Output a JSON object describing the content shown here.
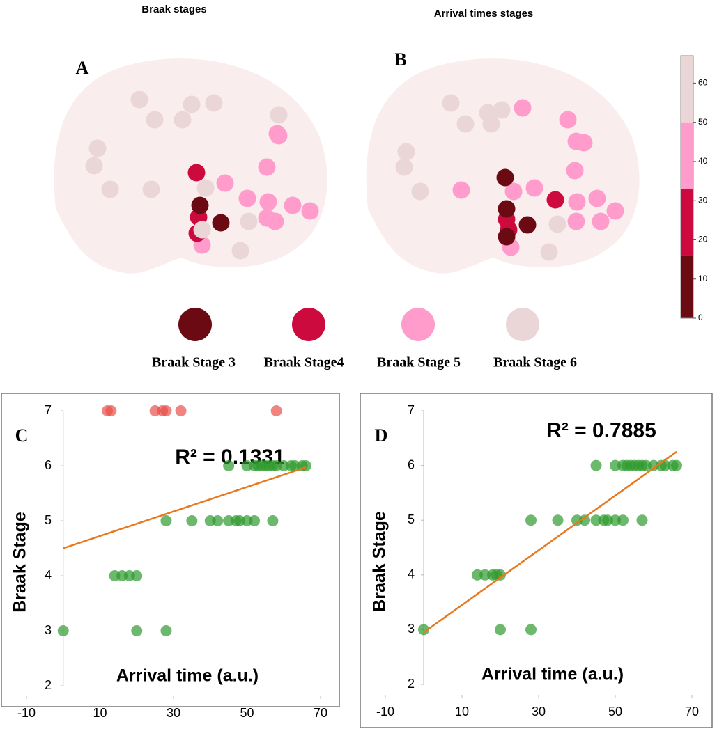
{
  "legend": [
    {
      "name": "Braak Stage 3",
      "color": "#6b0a12"
    },
    {
      "name": "Braak Stage4",
      "color": "#cc0a3e"
    },
    {
      "name": "Braak Stage 5",
      "color": "#ff9ccb"
    },
    {
      "name": "Braak Stage 6",
      "color": "#ead6d6"
    }
  ],
  "chart_data": [
    {
      "type": "brain",
      "title": "Braak stages",
      "label": "A"
    },
    {
      "type": "brain",
      "title": "Arrival times stages",
      "label": "B"
    },
    {
      "type": "colorbar",
      "bins": [
        0,
        16,
        33,
        50,
        67
      ],
      "colors": [
        "#6b0a12",
        "#cc0a3e",
        "#ff9ccb",
        "#ead6d6"
      ],
      "ylim": [
        0,
        67
      ],
      "yticks": [
        0,
        10,
        20,
        30,
        40,
        50,
        60
      ]
    },
    {
      "type": "scatter",
      "label": "C",
      "x_label": "Arrival time (a.u.)",
      "y_label": "Braak Stage",
      "annotation": "R² = 0.1331",
      "xlim": [
        -10,
        70
      ],
      "xticks": [
        -10,
        10,
        30,
        50,
        70
      ],
      "ylim": [
        2,
        7
      ],
      "yticks": [
        2,
        3,
        4,
        5,
        6,
        7
      ],
      "series": [
        {
          "color": "#2e9a2e",
          "x": [
            0,
            20,
            28,
            14,
            16,
            18,
            20,
            28,
            35,
            40,
            42,
            45,
            47,
            48,
            50,
            52,
            57,
            45,
            50,
            52,
            53,
            54,
            55,
            56,
            57,
            58,
            60,
            62,
            63,
            65,
            66
          ],
          "values": [
            3,
            3,
            3,
            4,
            4,
            4,
            4,
            5,
            5,
            5,
            5,
            5,
            5,
            5,
            5,
            5,
            5,
            6,
            6,
            6,
            6,
            6,
            6,
            6,
            6,
            6,
            6,
            6,
            6,
            6,
            6
          ]
        },
        {
          "color": "#e8504a",
          "x": [
            12,
            13,
            25,
            27,
            28,
            32,
            58
          ],
          "values": [
            7,
            7,
            7,
            7,
            7,
            7,
            7
          ]
        }
      ],
      "trendline": {
        "color": "#e8781e",
        "x": [
          0,
          66
        ],
        "values": [
          4.5,
          5.97
        ]
      }
    },
    {
      "type": "scatter",
      "label": "D",
      "x_label": "Arrival time (a.u.)",
      "y_label": "Braak Stage",
      "annotation": "R² = 0.7885",
      "xlim": [
        -10,
        70
      ],
      "xticks": [
        -10,
        10,
        30,
        50,
        70
      ],
      "ylim": [
        2,
        7
      ],
      "yticks": [
        2,
        3,
        4,
        5,
        6,
        7
      ],
      "series": [
        {
          "color": "#2e9a2e",
          "x": [
            0,
            20,
            28,
            14,
            16,
            18,
            19,
            20,
            28,
            35,
            40,
            42,
            45,
            47,
            48,
            50,
            52,
            57,
            45,
            50,
            52,
            53,
            54,
            55,
            56,
            57,
            58,
            60,
            62,
            63,
            65,
            66
          ],
          "values": [
            3,
            3,
            3,
            4,
            4,
            4,
            4,
            4,
            5,
            5,
            5,
            5,
            5,
            5,
            5,
            5,
            5,
            5,
            6,
            6,
            6,
            6,
            6,
            6,
            6,
            6,
            6,
            6,
            6,
            6,
            6,
            6
          ]
        }
      ],
      "trendline": {
        "color": "#e8781e",
        "x": [
          0,
          66
        ],
        "values": [
          2.95,
          6.25
        ]
      }
    }
  ]
}
